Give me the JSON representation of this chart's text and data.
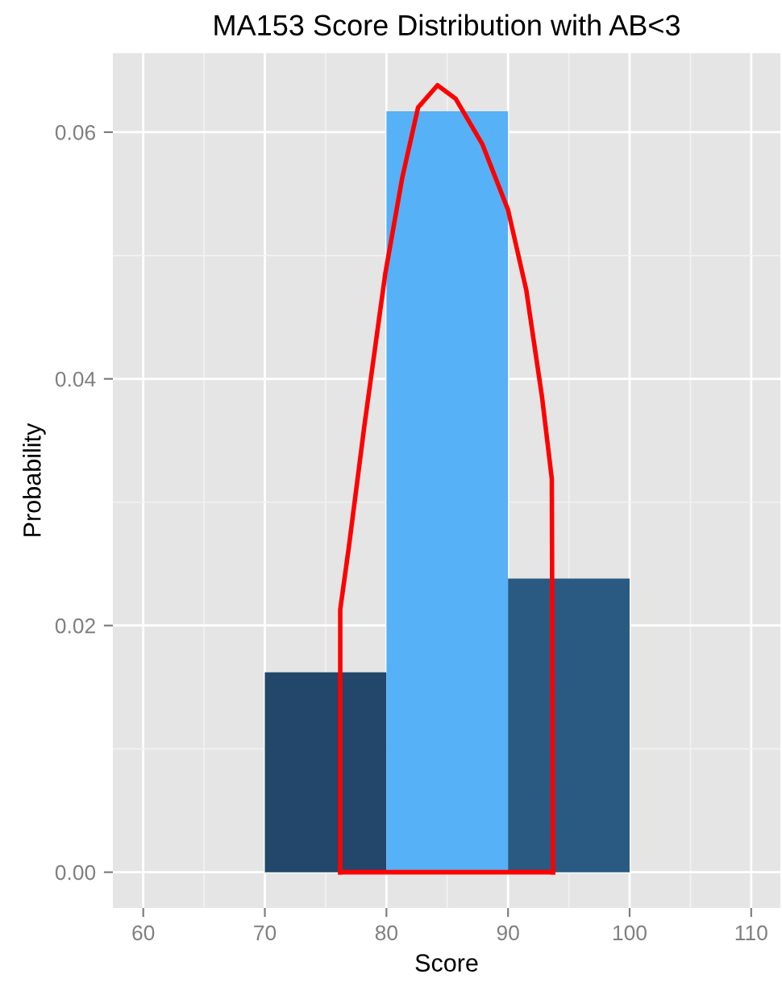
{
  "chart_data": {
    "type": "histogram",
    "title": "MA153 Score Distribution with AB<3",
    "xlabel": "Score",
    "ylabel": "Probability",
    "bins": [
      70,
      80,
      90,
      100
    ],
    "values": [
      0.0162,
      0.0617,
      0.0238
    ],
    "colors": [
      "#22476a",
      "#56b1f7",
      "#2a5a82"
    ],
    "series": [
      {
        "type": "line",
        "color": "#ff0000",
        "x": [
          76.2,
          76.2,
          76.9,
          78.2,
          79.9,
          81.3,
          82.6,
          84.2,
          85.7,
          87.9,
          90.0,
          91.5,
          92.8,
          93.6,
          93.7
        ],
        "values": [
          0,
          0.0213,
          0.0263,
          0.0363,
          0.0485,
          0.0563,
          0.062,
          0.0638,
          0.0627,
          0.059,
          0.0537,
          0.0472,
          0.0385,
          0.0319,
          0
        ]
      },
      {
        "type": "line",
        "color": "#ff0000",
        "x": [
          76.2,
          93.7
        ],
        "values": [
          0,
          0
        ]
      }
    ],
    "xlim": [
      57.5,
      112.4
    ],
    "ylim": [
      -0.0029,
      0.0664
    ],
    "xticks": [
      60,
      70,
      80,
      90,
      100,
      110
    ],
    "yticks": [
      {
        "value": 0,
        "label": "0.00"
      },
      {
        "value": 0.02,
        "label": "0.02"
      },
      {
        "value": 0.04,
        "label": "0.04"
      },
      {
        "value": 0.06,
        "label": "0.06"
      }
    ],
    "grid": true,
    "legend": false
  }
}
